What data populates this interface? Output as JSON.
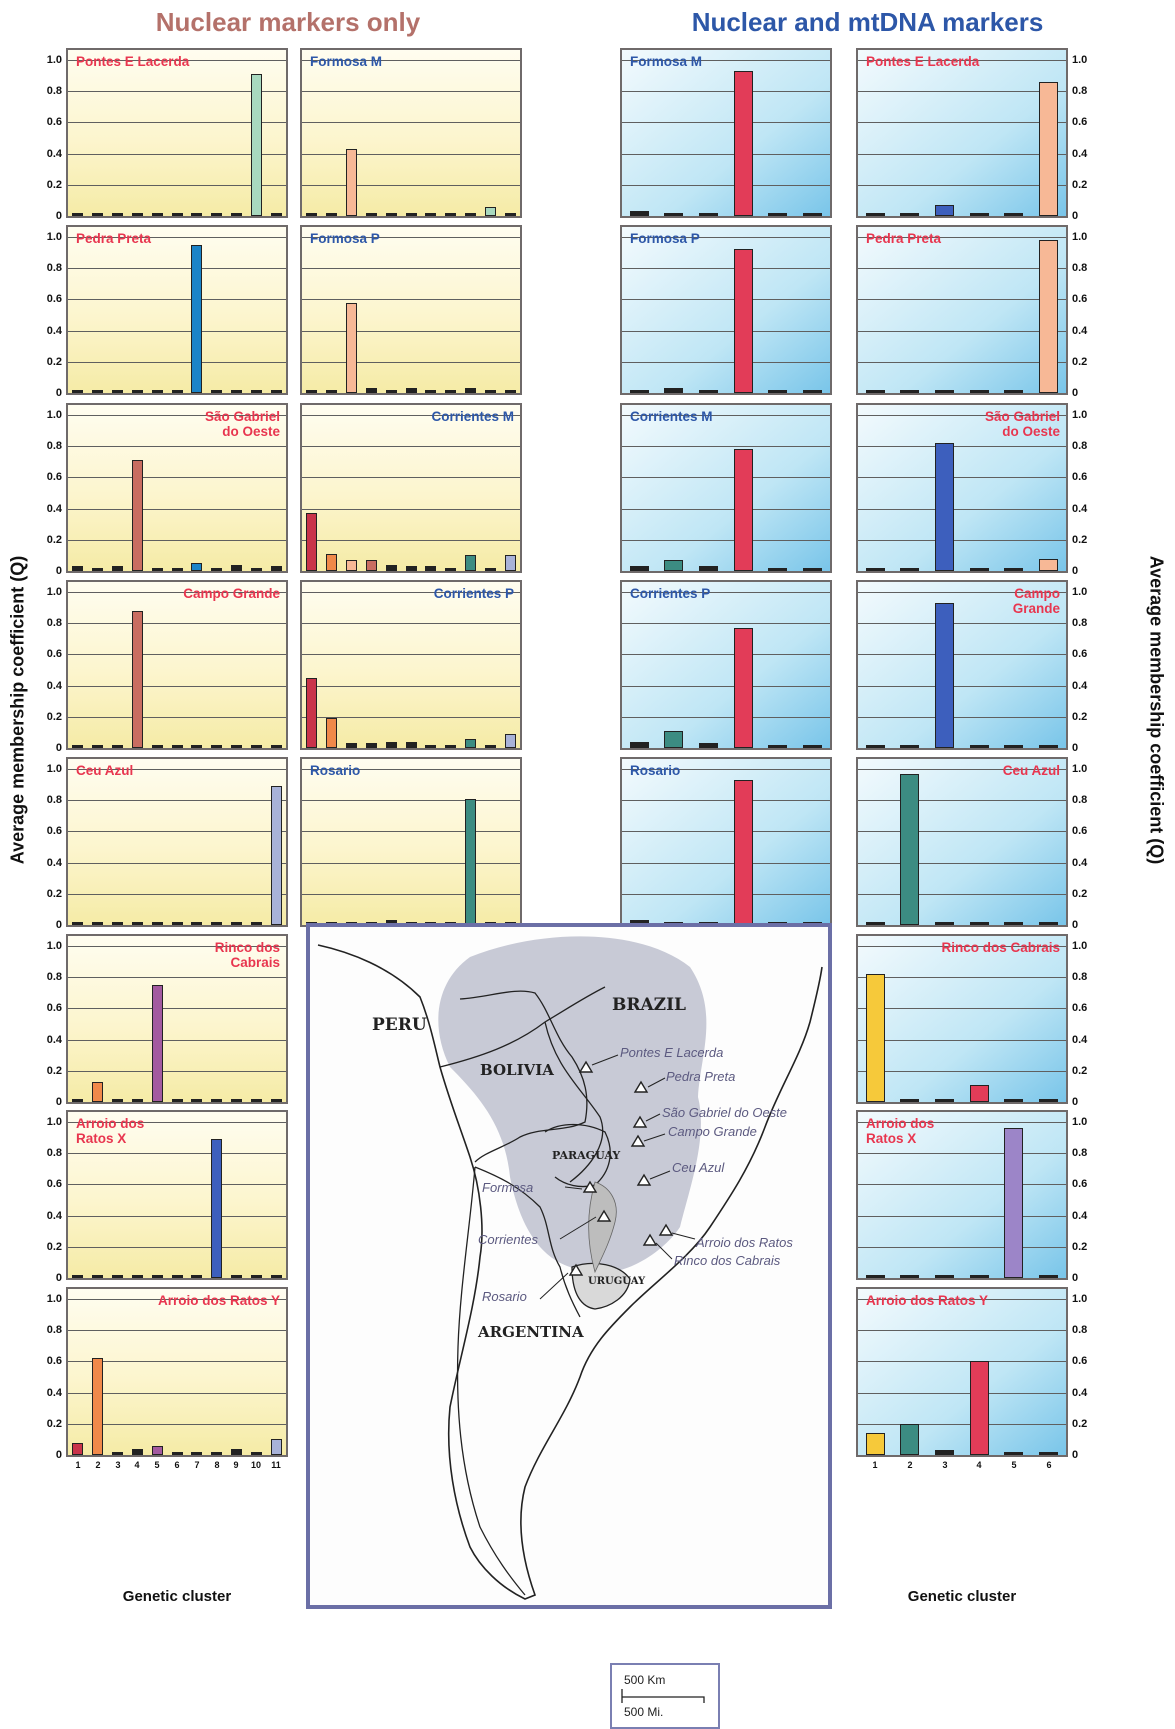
{
  "headers": {
    "left": "Nuclear markers only",
    "right": "Nuclear and mtDNA markers"
  },
  "axis": {
    "ylabel": "Average membership coefficient (Q)",
    "xlabel": "Genetic cluster",
    "yticks": [
      "1.0",
      "0.8",
      "0.6",
      "0.4",
      "0.2",
      "0"
    ],
    "nuclear_clusters": [
      "1",
      "2",
      "3",
      "4",
      "5",
      "6",
      "7",
      "8",
      "9",
      "10",
      "11"
    ],
    "mt_clusters": [
      "1",
      "2",
      "3",
      "4",
      "5",
      "6"
    ]
  },
  "colors": {
    "nuclear_clusters": [
      "#c9344a",
      "#f0894a",
      "#f7b896",
      "#c96d61",
      "#a35aa0",
      "#2e2e2e",
      "#1b84c8",
      "#3d5fbd",
      "#3c8c82",
      "#a8d9bf",
      "#a8b2d8"
    ],
    "mt_clusters": [
      "#f6c93a",
      "#3c8c82",
      "#3d5fbd",
      "#e23c58",
      "#9c85c8",
      "#f7b896"
    ],
    "small": "#222222",
    "title_brazil": "#e8364f",
    "title_other": "#2d57a8",
    "bg_nuclear": "#fbf3c4",
    "bg_mt": "#8fd0ee"
  },
  "chart_data": [
    {
      "panel": "nuclear",
      "title": [
        "Pontes E Lacerda"
      ],
      "title_color": "brazil",
      "title_align": "left",
      "type": "bar",
      "ylim": [
        0,
        1
      ],
      "values": [
        0.01,
        0.01,
        0.01,
        0.01,
        0.01,
        0.01,
        0.02,
        0.01,
        0.01,
        0.91,
        0.01
      ],
      "grid": true
    },
    {
      "panel": "nuclear",
      "title": [
        "Formosa M"
      ],
      "title_color": "other",
      "title_align": "left",
      "type": "bar",
      "ylim": [
        0,
        1
      ],
      "values": [
        0.02,
        0.02,
        0.43,
        0.02,
        0.02,
        0.02,
        0.02,
        0.01,
        0.01,
        0.06,
        0.02
      ],
      "grid": true
    },
    {
      "panel": "nuclear",
      "title": [
        "Pedra Preta"
      ],
      "title_color": "brazil",
      "title_align": "left",
      "type": "bar",
      "ylim": [
        0,
        1
      ],
      "values": [
        0.01,
        0.01,
        0.01,
        0.01,
        0.01,
        0.01,
        0.95,
        0.01,
        0.01,
        0.01,
        0.01
      ],
      "grid": true
    },
    {
      "panel": "nuclear",
      "title": [
        "Formosa P"
      ],
      "title_color": "other",
      "title_align": "left",
      "type": "bar",
      "ylim": [
        0,
        1
      ],
      "values": [
        0.02,
        0.02,
        0.58,
        0.03,
        0.02,
        0.03,
        0.02,
        0.02,
        0.03,
        0.02,
        0.02
      ],
      "grid": true
    },
    {
      "panel": "nuclear",
      "title": [
        "São Gabriel",
        "do Oeste"
      ],
      "title_color": "brazil",
      "title_align": "right",
      "type": "bar",
      "ylim": [
        0,
        1
      ],
      "values": [
        0.03,
        0.01,
        0.03,
        0.71,
        0.01,
        0.01,
        0.05,
        0.01,
        0.04,
        0.02,
        0.03
      ],
      "grid": true
    },
    {
      "panel": "nuclear",
      "title": [
        "Corrientes M"
      ],
      "title_color": "other",
      "title_align": "right",
      "type": "bar",
      "ylim": [
        0,
        1
      ],
      "values": [
        0.37,
        0.11,
        0.07,
        0.07,
        0.04,
        0.03,
        0.03,
        0.02,
        0.1,
        0.02,
        0.1
      ],
      "grid": true
    },
    {
      "panel": "nuclear",
      "title": [
        "Campo Grande"
      ],
      "title_color": "brazil",
      "title_align": "right",
      "type": "bar",
      "ylim": [
        0,
        1
      ],
      "values": [
        0.01,
        0.01,
        0.02,
        0.88,
        0.01,
        0.01,
        0.01,
        0.01,
        0.01,
        0.01,
        0.01
      ],
      "grid": true
    },
    {
      "panel": "nuclear",
      "title": [
        "Corrientes P"
      ],
      "title_color": "other",
      "title_align": "right",
      "type": "bar",
      "ylim": [
        0,
        1
      ],
      "values": [
        0.45,
        0.19,
        0.03,
        0.03,
        0.04,
        0.04,
        0.01,
        0.01,
        0.06,
        0.02,
        0.09
      ],
      "grid": true
    },
    {
      "panel": "nuclear",
      "title": [
        "Ceu Azul"
      ],
      "title_color": "brazil",
      "title_align": "left",
      "type": "bar",
      "ylim": [
        0,
        1
      ],
      "values": [
        0.01,
        0.01,
        0.01,
        0.01,
        0.01,
        0.01,
        0.01,
        0.01,
        0.01,
        0.01,
        0.89
      ],
      "grid": true
    },
    {
      "panel": "nuclear",
      "title": [
        "Rosario"
      ],
      "title_color": "other",
      "title_align": "left",
      "type": "bar",
      "ylim": [
        0,
        1
      ],
      "values": [
        0.02,
        0.02,
        0.02,
        0.02,
        0.03,
        0.02,
        0.02,
        0.02,
        0.81,
        0.02,
        0.02
      ],
      "grid": true
    },
    {
      "panel": "nuclear",
      "title": [
        "Rinco dos",
        "Cabrais"
      ],
      "title_color": "brazil",
      "title_align": "right",
      "type": "bar",
      "ylim": [
        0,
        1
      ],
      "values": [
        0.02,
        0.13,
        0.01,
        0.01,
        0.75,
        0.01,
        0.01,
        0.01,
        0.01,
        0.01,
        0.01
      ],
      "grid": true
    },
    {
      "panel": "nuclear",
      "title": [
        "Arroio dos",
        "Ratos X"
      ],
      "title_color": "brazil",
      "title_align": "left",
      "type": "bar",
      "ylim": [
        0,
        1
      ],
      "values": [
        0.01,
        0.01,
        0.01,
        0.01,
        0.01,
        0.01,
        0.01,
        0.89,
        0.01,
        0.01,
        0.01
      ],
      "grid": true
    },
    {
      "panel": "nuclear",
      "title": [
        "Arroio dos Ratos Y"
      ],
      "title_color": "brazil",
      "title_align": "right",
      "type": "bar",
      "ylim": [
        0,
        1
      ],
      "values": [
        0.08,
        0.62,
        0.01,
        0.04,
        0.06,
        0.01,
        0.01,
        0.01,
        0.04,
        0.01,
        0.1
      ],
      "grid": true
    },
    {
      "panel": "mt",
      "title": [
        "Formosa M"
      ],
      "title_color": "other",
      "title_align": "left",
      "type": "bar",
      "ylim": [
        0,
        1
      ],
      "values": [
        0.03,
        0.01,
        0.01,
        0.93,
        0.01,
        0.01
      ],
      "grid": true
    },
    {
      "panel": "mt",
      "title": [
        "Pontes E Lacerda"
      ],
      "title_color": "brazil",
      "title_align": "left",
      "type": "bar",
      "ylim": [
        0,
        1
      ],
      "values": [
        0.01,
        0.01,
        0.07,
        0.02,
        0.01,
        0.86
      ],
      "grid": true
    },
    {
      "panel": "mt",
      "title": [
        "Formosa P"
      ],
      "title_color": "other",
      "title_align": "left",
      "type": "bar",
      "ylim": [
        0,
        1
      ],
      "values": [
        0.01,
        0.03,
        0.02,
        0.92,
        0.01,
        0.01
      ],
      "grid": true
    },
    {
      "panel": "mt",
      "title": [
        "Pedra Preta"
      ],
      "title_color": "brazil",
      "title_align": "left",
      "type": "bar",
      "ylim": [
        0,
        1
      ],
      "values": [
        0.01,
        0.01,
        0.01,
        0.01,
        0.01,
        0.98
      ],
      "grid": true
    },
    {
      "panel": "mt",
      "title": [
        "Corrientes M"
      ],
      "title_color": "other",
      "title_align": "left",
      "type": "bar",
      "ylim": [
        0,
        1
      ],
      "values": [
        0.03,
        0.07,
        0.03,
        0.78,
        0.01,
        0.01
      ],
      "grid": true
    },
    {
      "panel": "mt",
      "title": [
        "São Gabriel",
        "do Oeste"
      ],
      "title_color": "brazil",
      "title_align": "right",
      "type": "bar",
      "ylim": [
        0,
        1
      ],
      "values": [
        0.01,
        0.01,
        0.82,
        0.02,
        0.01,
        0.08
      ],
      "grid": true
    },
    {
      "panel": "mt",
      "title": [
        "Corrientes P"
      ],
      "title_color": "other",
      "title_align": "left",
      "type": "bar",
      "ylim": [
        0,
        1
      ],
      "values": [
        0.04,
        0.11,
        0.03,
        0.77,
        0.01,
        0.01
      ],
      "grid": true
    },
    {
      "panel": "mt",
      "title": [
        "Campo",
        "Grande"
      ],
      "title_color": "brazil",
      "title_align": "right",
      "type": "bar",
      "ylim": [
        0,
        1
      ],
      "values": [
        0.01,
        0.01,
        0.93,
        0.02,
        0.01,
        0.01
      ],
      "grid": true
    },
    {
      "panel": "mt",
      "title": [
        "Rosario"
      ],
      "title_color": "other",
      "title_align": "left",
      "type": "bar",
      "ylim": [
        0,
        1
      ],
      "values": [
        0.03,
        0.01,
        0.01,
        0.93,
        0.01,
        0.01
      ],
      "grid": true
    },
    {
      "panel": "mt",
      "title": [
        "Ceu Azul"
      ],
      "title_color": "brazil",
      "title_align": "right",
      "type": "bar",
      "ylim": [
        0,
        1
      ],
      "values": [
        0.01,
        0.97,
        0.01,
        0.01,
        0.01,
        0.01
      ],
      "grid": true
    },
    {
      "panel": "mt",
      "title": [
        "Rinco dos Cabrais"
      ],
      "title_color": "brazil",
      "title_align": "right",
      "type": "bar",
      "ylim": [
        0,
        1
      ],
      "values": [
        0.82,
        0.02,
        0.01,
        0.11,
        0.01,
        0.01
      ],
      "grid": true
    },
    {
      "panel": "mt",
      "title": [
        "Arroio dos",
        "Ratos X"
      ],
      "title_color": "brazil",
      "title_align": "left",
      "type": "bar",
      "ylim": [
        0,
        1
      ],
      "values": [
        0.01,
        0.01,
        0.01,
        0.01,
        0.96,
        0.01
      ],
      "grid": true
    },
    {
      "panel": "mt",
      "title": [
        "Arroio dos Ratos Y"
      ],
      "title_color": "brazil",
      "title_align": "left",
      "type": "bar",
      "ylim": [
        0,
        1
      ],
      "values": [
        0.14,
        0.2,
        0.03,
        0.6,
        0.01,
        0.01
      ],
      "grid": true
    }
  ],
  "map": {
    "countries": [
      "PERU",
      "BRAZIL",
      "BOLIVIA",
      "PARAGUAY",
      "ARGENTINA",
      "URUGUAY"
    ],
    "sites": [
      "Pontes E Lacerda",
      "Pedra Preta",
      "São Gabriel do Oeste",
      "Campo Grande",
      "Ceu Azul",
      "Formosa",
      "Corrientes",
      "Arroio dos Ratos",
      "Rinco dos Cabrais",
      "Rosario"
    ],
    "scale": [
      "500 Km",
      "500 Mi."
    ]
  }
}
